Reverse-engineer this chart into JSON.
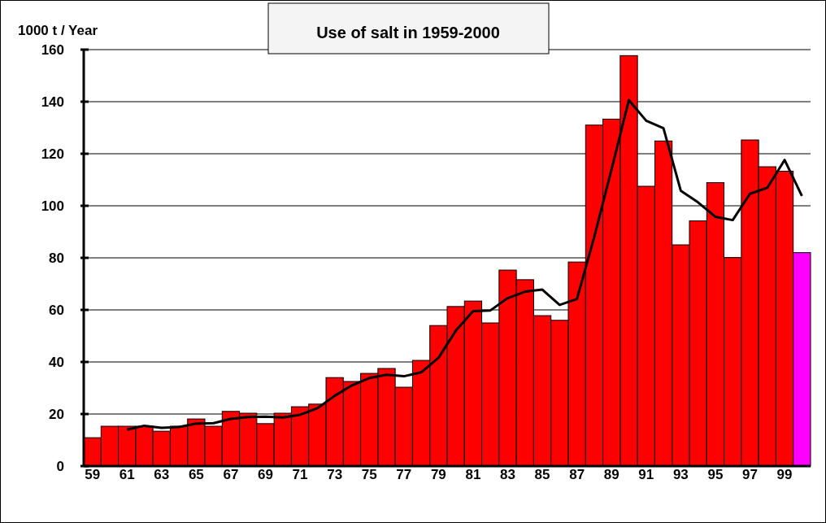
{
  "chart_data": {
    "type": "bar",
    "title": "Use of salt in 1959-2000",
    "ylabel": "1000 t / Year",
    "categories": [
      "59",
      null,
      "61",
      null,
      "63",
      null,
      "65",
      null,
      "67",
      null,
      "69",
      null,
      "71",
      null,
      "73",
      null,
      "75",
      null,
      "77",
      null,
      "79",
      null,
      "81",
      null,
      "83",
      null,
      "85",
      null,
      "87",
      null,
      "89",
      null,
      "91",
      null,
      "93",
      null,
      "95",
      null,
      "97",
      null,
      "99",
      null
    ],
    "series": [
      {
        "colors": [
          "#ff0000",
          "#ff0000",
          "#ff0000",
          "#ff0000",
          "#ff0000",
          "#ff0000",
          "#ff0000",
          "#ff0000",
          "#ff0000",
          "#ff0000",
          "#ff0000",
          "#ff0000",
          "#ff0000",
          "#ff0000",
          "#ff0000",
          "#ff0000",
          "#ff0000",
          "#ff0000",
          "#ff0000",
          "#ff0000",
          "#ff0000",
          "#ff0000",
          "#ff0000",
          "#ff0000",
          "#ff0000",
          "#ff0000",
          "#ff0000",
          "#ff0000",
          "#ff0000",
          "#ff0000",
          "#ff0000",
          "#ff0000",
          "#ff0000",
          "#ff0000",
          "#ff0000",
          "#ff0000",
          "#ff0000",
          "#ff0000",
          "#ff0000",
          "#ff0000",
          "#ff0000",
          "#ff00ff"
        ],
        "values": [
          10.9,
          15.3,
          15.3,
          15.3,
          13.4,
          15.3,
          18.1,
          15.3,
          21,
          20.3,
          16.3,
          20.3,
          22.8,
          23.8,
          34,
          32.5,
          35.6,
          37.5,
          30.3,
          40.6,
          54,
          61.3,
          63.4,
          55,
          75.3,
          71.6,
          57.8,
          56,
          78.4,
          131,
          133.3,
          157.7,
          107.5,
          124.9,
          85,
          94.2,
          108.9,
          80.1,
          125.3,
          115,
          113.3,
          82
        ]
      },
      {
        "type": "line",
        "color": "#000000",
        "values": [
          null,
          null,
          14,
          15.5,
          14.7,
          15,
          16.3,
          16.5,
          18.1,
          18.8,
          19,
          18.7,
          19.7,
          22.2,
          27,
          31,
          33.8,
          35.1,
          34.5,
          36,
          41.6,
          52,
          59.5,
          59.8,
          64.5,
          67,
          67.8,
          61.9,
          64.2,
          88,
          114,
          140.6,
          132.7,
          129.8,
          105.8,
          101.3,
          95.8,
          94.5,
          104.6,
          106.9,
          117.6,
          103.8
        ]
      }
    ],
    "ylim": [
      0,
      160
    ],
    "yticks": [
      0,
      20,
      40,
      60,
      80,
      100,
      120,
      140,
      160
    ],
    "grid": "y",
    "marker": "none"
  }
}
